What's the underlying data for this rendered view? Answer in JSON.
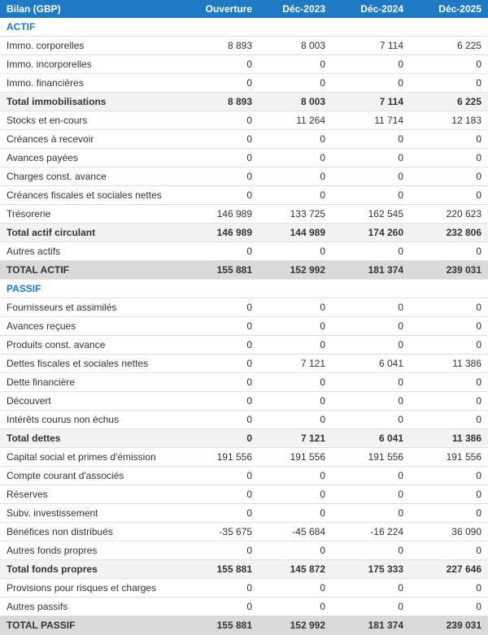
{
  "header": {
    "title": "Bilan (GBP)",
    "columns": [
      "Ouverture",
      "Déc-2023",
      "Déc-2024",
      "Déc-2025"
    ]
  },
  "colors": {
    "header_bg": "#1e7bc3",
    "header_text": "#ffffff",
    "section_text": "#1e7bc3",
    "subtotal_bg": "#f2f2f2",
    "total_bg": "#d9d9d9",
    "border": "#e0e0e0"
  },
  "rows": [
    {
      "type": "section",
      "label": "ACTIF"
    },
    {
      "type": "data",
      "label": "Immo. corporelles",
      "values": [
        "8 893",
        "8 003",
        "7 114",
        "6 225"
      ]
    },
    {
      "type": "data",
      "label": "Immo. incorporelles",
      "values": [
        "0",
        "0",
        "0",
        "0"
      ]
    },
    {
      "type": "data",
      "label": "Immo. financières",
      "values": [
        "0",
        "0",
        "0",
        "0"
      ]
    },
    {
      "type": "subtotal",
      "label": "Total immobilisations",
      "values": [
        "8 893",
        "8 003",
        "7 114",
        "6 225"
      ]
    },
    {
      "type": "data",
      "label": "Stocks et en-cours",
      "values": [
        "0",
        "11 264",
        "11 714",
        "12 183"
      ]
    },
    {
      "type": "data",
      "label": "Créances à recevoir",
      "values": [
        "0",
        "0",
        "0",
        "0"
      ]
    },
    {
      "type": "data",
      "label": "Avances payées",
      "values": [
        "0",
        "0",
        "0",
        "0"
      ]
    },
    {
      "type": "data",
      "label": "Charges const. avance",
      "values": [
        "0",
        "0",
        "0",
        "0"
      ]
    },
    {
      "type": "data",
      "label": "Créances fiscales et sociales nettes",
      "values": [
        "0",
        "0",
        "0",
        "0"
      ]
    },
    {
      "type": "data",
      "label": "Trésorerie",
      "values": [
        "146 989",
        "133 725",
        "162 545",
        "220 623"
      ]
    },
    {
      "type": "subtotal",
      "label": "Total actif circulant",
      "values": [
        "146 989",
        "144 989",
        "174 260",
        "232 806"
      ]
    },
    {
      "type": "data",
      "label": "Autres actifs",
      "values": [
        "0",
        "0",
        "0",
        "0"
      ]
    },
    {
      "type": "total",
      "label": "TOTAL ACTIF",
      "values": [
        "155 881",
        "152 992",
        "181 374",
        "239 031"
      ]
    },
    {
      "type": "section",
      "label": "PASSIF"
    },
    {
      "type": "data",
      "label": "Fournisseurs et assimilés",
      "values": [
        "0",
        "0",
        "0",
        "0"
      ]
    },
    {
      "type": "data",
      "label": "Avances reçues",
      "values": [
        "0",
        "0",
        "0",
        "0"
      ]
    },
    {
      "type": "data",
      "label": "Produits const. avance",
      "values": [
        "0",
        "0",
        "0",
        "0"
      ]
    },
    {
      "type": "data",
      "label": "Dettes fiscales et sociales nettes",
      "values": [
        "0",
        "7 121",
        "6 041",
        "11 386"
      ]
    },
    {
      "type": "data",
      "label": "Dette financière",
      "values": [
        "0",
        "0",
        "0",
        "0"
      ]
    },
    {
      "type": "data",
      "label": "Découvert",
      "values": [
        "0",
        "0",
        "0",
        "0"
      ]
    },
    {
      "type": "data",
      "label": "Intérêts courus non échus",
      "values": [
        "0",
        "0",
        "0",
        "0"
      ]
    },
    {
      "type": "subtotal",
      "label": "Total dettes",
      "values": [
        "0",
        "7 121",
        "6 041",
        "11 386"
      ]
    },
    {
      "type": "data",
      "label": "Capital social et primes d'émission",
      "values": [
        "191 556",
        "191 556",
        "191 556",
        "191 556"
      ]
    },
    {
      "type": "data",
      "label": "Compte courant d'associés",
      "values": [
        "0",
        "0",
        "0",
        "0"
      ]
    },
    {
      "type": "data",
      "label": "Réserves",
      "values": [
        "0",
        "0",
        "0",
        "0"
      ]
    },
    {
      "type": "data",
      "label": "Subv. investissement",
      "values": [
        "0",
        "0",
        "0",
        "0"
      ]
    },
    {
      "type": "data",
      "label": "Bénéfices non distribués",
      "values": [
        "-35 675",
        "-45 684",
        "-16 224",
        "36 090"
      ]
    },
    {
      "type": "data",
      "label": "Autres fonds propres",
      "values": [
        "0",
        "0",
        "0",
        "0"
      ]
    },
    {
      "type": "subtotal",
      "label": "Total fonds propres",
      "values": [
        "155 881",
        "145 872",
        "175 333",
        "227 646"
      ]
    },
    {
      "type": "data",
      "label": "Provisions pour risques et charges",
      "values": [
        "0",
        "0",
        "0",
        "0"
      ]
    },
    {
      "type": "data",
      "label": "Autres passifs",
      "values": [
        "0",
        "0",
        "0",
        "0"
      ]
    },
    {
      "type": "total",
      "label": "TOTAL PASSIF",
      "values": [
        "155 881",
        "152 992",
        "181 374",
        "239 031"
      ]
    }
  ]
}
